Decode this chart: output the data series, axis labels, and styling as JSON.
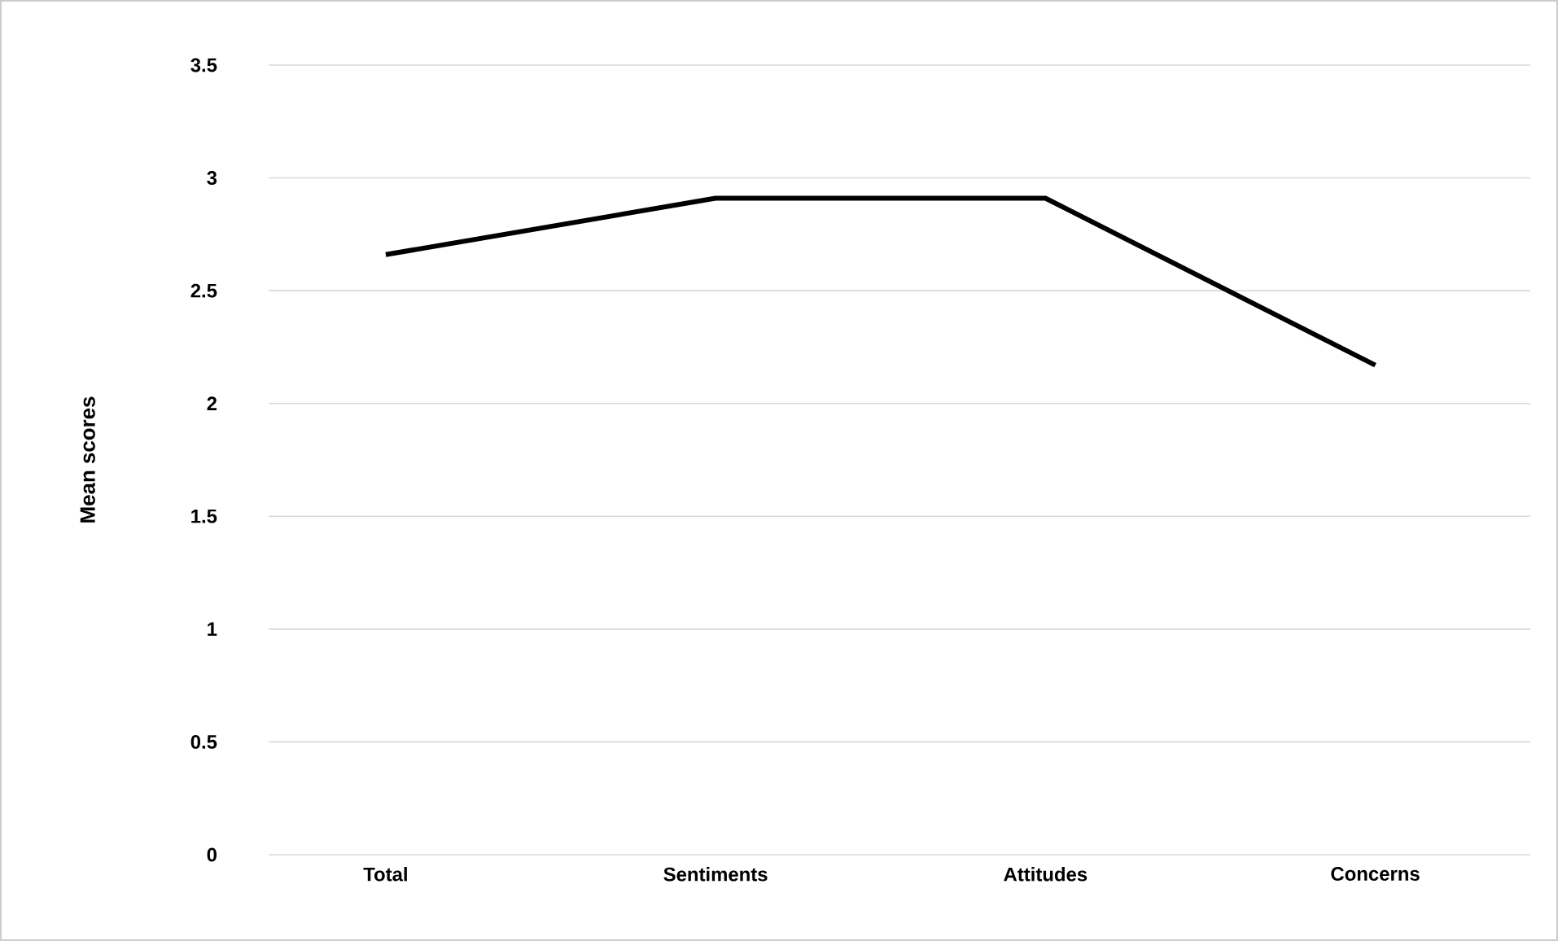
{
  "chart_data": {
    "type": "line",
    "ylabel": "Mean scores",
    "categories": [
      "Total",
      "Sentiments",
      "Attitudes",
      "Concerns"
    ],
    "values": [
      2.66,
      2.91,
      2.91,
      2.17
    ],
    "color": "#000000",
    "ylim": [
      0,
      3.5
    ],
    "yticks": [
      0,
      0.5,
      1,
      1.5,
      2,
      2.5,
      3,
      3.5
    ],
    "grid": "y"
  }
}
